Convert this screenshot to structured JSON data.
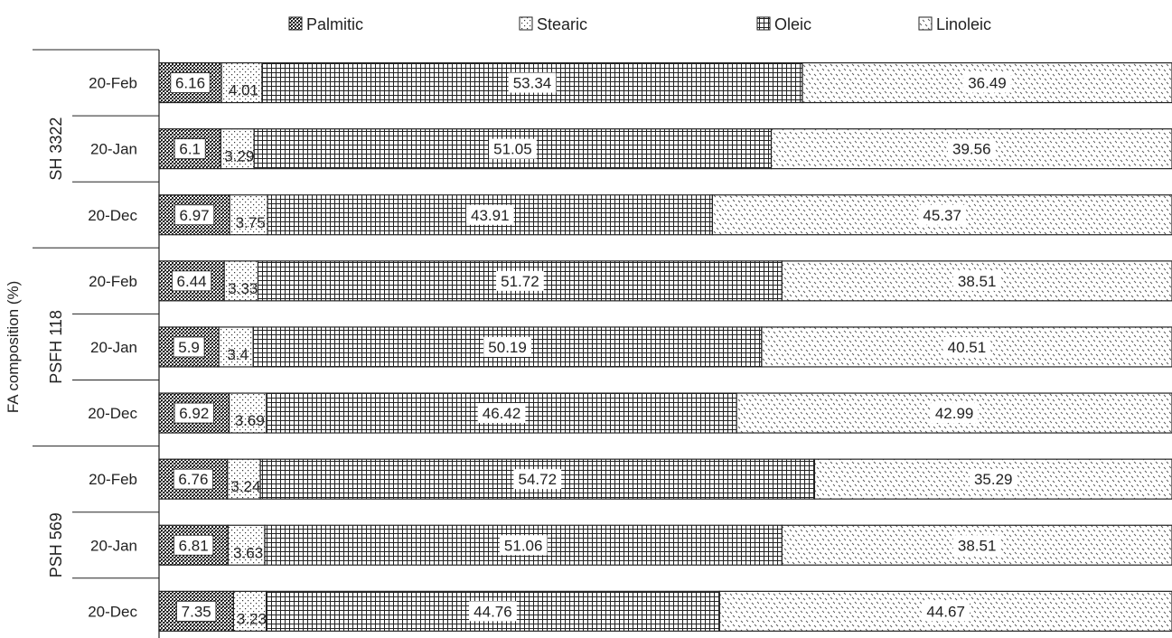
{
  "chart_data": {
    "type": "bar",
    "orientation": "horizontal",
    "stacking": "normalized-100",
    "ylabel": "FA composition (%)",
    "legend_position": "top",
    "groups": [
      {
        "name": "SH  3322",
        "rows": [
          "20-Feb",
          "20-Jan",
          "20-Dec"
        ]
      },
      {
        "name": "PSFH  118",
        "rows": [
          "20-Feb",
          "20-Jan",
          "20-Dec"
        ]
      },
      {
        "name": "PSH  569",
        "rows": [
          "20-Feb",
          "20-Jan",
          "20-Dec"
        ]
      }
    ],
    "series": [
      {
        "name": "Palmitic",
        "pattern": "dense-dots",
        "values": [
          6.16,
          6.1,
          6.97,
          6.44,
          5.9,
          6.92,
          6.76,
          6.81,
          7.35
        ]
      },
      {
        "name": "Stearic",
        "pattern": "sparse-dots",
        "values": [
          4.01,
          3.29,
          3.75,
          3.33,
          3.4,
          3.69,
          3.24,
          3.63,
          3.23
        ]
      },
      {
        "name": "Oleic",
        "pattern": "grid",
        "values": [
          53.34,
          51.05,
          43.91,
          51.72,
          50.19,
          46.42,
          54.72,
          51.06,
          44.76
        ]
      },
      {
        "name": "Linoleic",
        "pattern": "dashes",
        "values": [
          36.49,
          39.56,
          45.37,
          38.51,
          40.51,
          42.99,
          35.29,
          38.51,
          44.67
        ]
      }
    ],
    "grid": false
  }
}
